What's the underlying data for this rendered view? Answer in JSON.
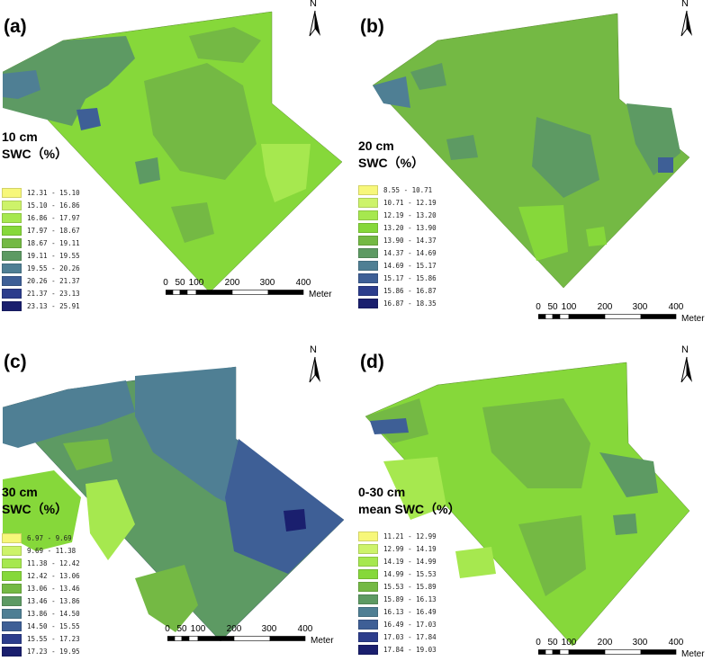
{
  "panels": [
    {
      "label": "(a)",
      "title_lines": [
        "10 cm",
        "SWC（%）"
      ],
      "legend": [
        "12.31 - 15.10",
        "15.10 - 16.86",
        "16.86 - 17.97",
        "17.97 - 18.67",
        "18.67 - 19.11",
        "19.11 - 19.55",
        "19.55 - 20.26",
        "20.26 - 21.37",
        "21.37 - 23.13",
        "23.13 - 25.91"
      ]
    },
    {
      "label": "(b)",
      "title_lines": [
        "20 cm",
        "SWC（%）"
      ],
      "legend": [
        "8.55 - 10.71",
        "10.71 - 12.19",
        "12.19 - 13.20",
        "13.20 - 13.90",
        "13.90 - 14.37",
        "14.37 - 14.69",
        "14.69 - 15.17",
        "15.17 - 15.86",
        "15.86 - 16.87",
        "16.87 - 18.35"
      ]
    },
    {
      "label": "(c)",
      "title_lines": [
        "30 cm",
        "SWC（%）"
      ],
      "legend": [
        "6.97 - 9.69",
        "9.69 - 11.38",
        "11.38 - 12.42",
        "12.42 - 13.06",
        "13.06 - 13.46",
        "13.46 - 13.86",
        "13.86 - 14.50",
        "14.50 - 15.55",
        "15.55 - 17.23",
        "17.23 - 19.95"
      ]
    },
    {
      "label": "(d)",
      "title_lines": [
        "0-30 cm",
        "mean SWC（%）"
      ],
      "legend": [
        "11.21 - 12.99",
        "12.99 - 14.19",
        "14.19 - 14.99",
        "14.99 - 15.53",
        "15.53 - 15.89",
        "15.89 - 16.13",
        "16.13 - 16.49",
        "16.49 - 17.03",
        "17.03 - 17.84",
        "17.84 - 19.03"
      ]
    }
  ],
  "legend_colors": [
    "#f7f77a",
    "#cdf36a",
    "#a6e84f",
    "#86d83a",
    "#74b944",
    "#5d9a63",
    "#4f7f94",
    "#3e5f96",
    "#2c3d8c",
    "#1a1f6e"
  ],
  "north_label": "N",
  "scale": {
    "ticks": [
      "0",
      "50",
      "100",
      "200",
      "300",
      "400"
    ],
    "unit": "Meter"
  },
  "icons": {
    "north_arrow": "north-arrow-icon",
    "scale_bar": "scale-bar-icon"
  }
}
